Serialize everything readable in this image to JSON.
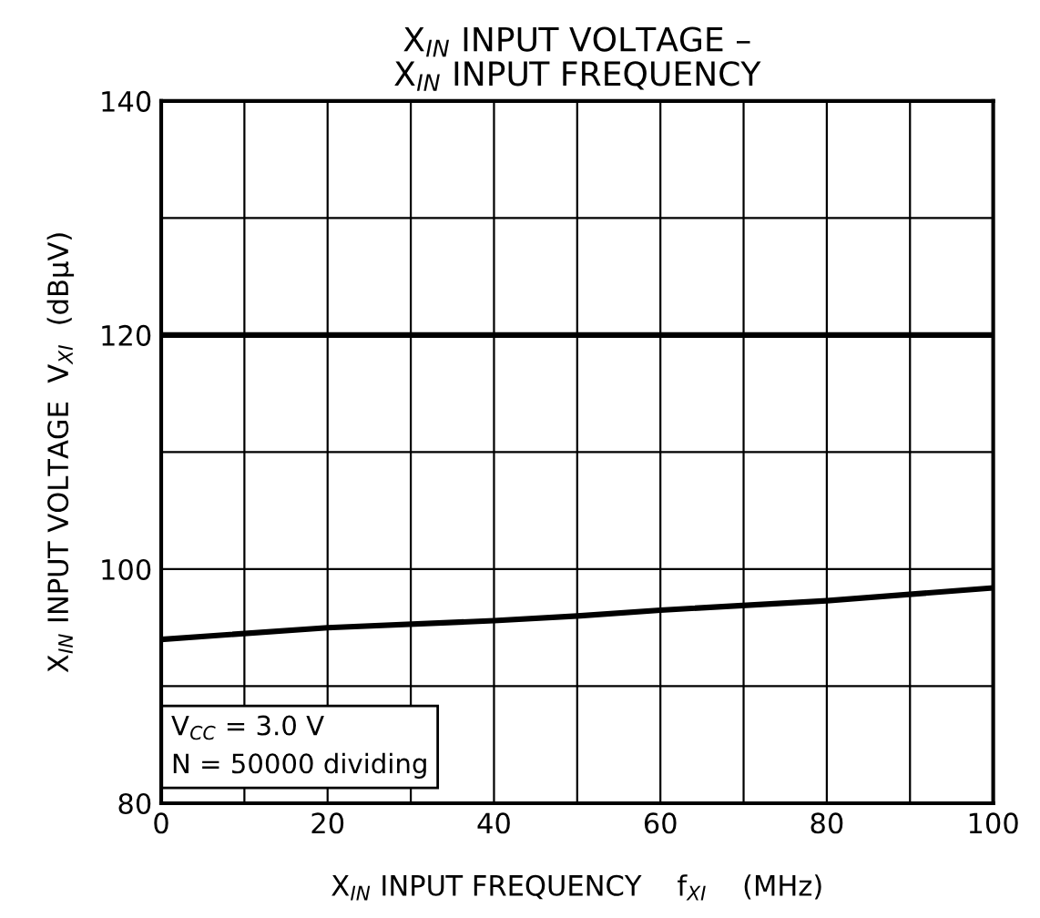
{
  "chart_data": {
    "type": "line",
    "title": "X$_{IN}$ INPUT VOLTAGE –\nX$_{IN}$ INPUT FREQUENCY",
    "xlabel": "X$_{IN}$ INPUT FREQUENCY    f$_{XI}$    (MHz)",
    "ylabel": "X$_{IN}$ INPUT VOLTAGE  V$_{XI}$  (dBμV)",
    "series": [
      {
        "color": "#000000",
        "x": [
          0,
          20,
          40,
          50,
          60,
          80,
          100
        ],
        "values": [
          94,
          95,
          95.6,
          96,
          96.5,
          97.3,
          98.4
        ]
      }
    ],
    "xlim": [
      0,
      100
    ],
    "ylim": [
      80,
      140
    ],
    "xticks": [
      0,
      20,
      40,
      60,
      80,
      100
    ],
    "yticks": [
      80,
      100,
      120,
      140
    ],
    "ref_lines": [
      {
        "axis": "y",
        "value": 120,
        "color": "#000000",
        "line_style": "solid"
      }
    ],
    "grid": true,
    "marker": "none",
    "line_style": "solid",
    "legend": false,
    "annotations": [
      "V$_{CC}$ = 3.0 V",
      "N = 50000 dividing"
    ]
  }
}
